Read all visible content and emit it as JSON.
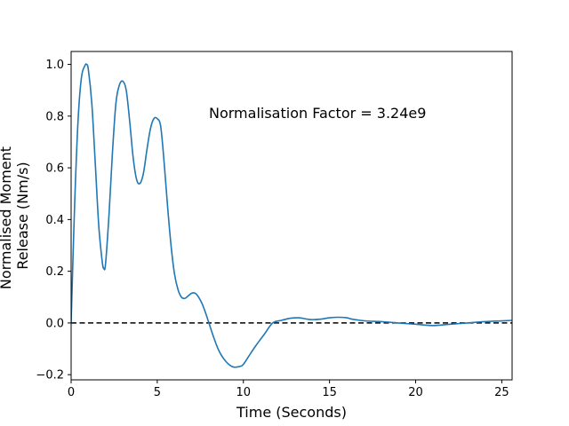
{
  "chart_data": {
    "type": "line",
    "title": "",
    "xlabel": "Time (Seconds)",
    "ylabel_lines": [
      "Normalised Moment",
      "Release (Nm/s)"
    ],
    "xlim": [
      0,
      25.6
    ],
    "ylim": [
      -0.22,
      1.05
    ],
    "x_ticks": [
      0,
      5,
      10,
      15,
      20,
      25
    ],
    "y_ticks": [
      -0.2,
      0.0,
      0.2,
      0.4,
      0.6,
      0.8,
      1.0
    ],
    "x_tick_labels": [
      "0",
      "5",
      "10",
      "15",
      "20",
      "25"
    ],
    "y_tick_labels": [
      "−0.2",
      "0.0",
      "0.2",
      "0.4",
      "0.6",
      "0.8",
      "1.0"
    ],
    "grid": false,
    "annotation": {
      "text": "Normalisation Factor = 3.24e9",
      "x": 8.0,
      "y": 0.81
    },
    "reference_line": {
      "y": 0.0,
      "style": "dashed",
      "color": "#000000"
    },
    "series": [
      {
        "color": "#1f77b4",
        "x": [
          0,
          0.2,
          0.4,
          0.6,
          0.8,
          0.9,
          1.0,
          1.2,
          1.4,
          1.6,
          1.8,
          1.9,
          2.0,
          2.2,
          2.4,
          2.6,
          2.8,
          3.0,
          3.2,
          3.4,
          3.6,
          3.8,
          4.0,
          4.2,
          4.4,
          4.6,
          4.8,
          5.0,
          5.2,
          5.4,
          5.6,
          5.8,
          6.0,
          6.2,
          6.4,
          6.6,
          6.8,
          7.0,
          7.2,
          7.4,
          7.6,
          7.8,
          8.0,
          8.3,
          8.6,
          9.0,
          9.4,
          9.8,
          10.0,
          10.3,
          10.7,
          11.2,
          11.7,
          12.2,
          12.7,
          13.2,
          13.7,
          14.0,
          14.5,
          15.0,
          15.5,
          16.0,
          16.3,
          16.8,
          17.3,
          18.0,
          19.0,
          20.0,
          21.0,
          22.0,
          23.0,
          24.0,
          25.0,
          25.6
        ],
        "y": [
          0.0,
          0.45,
          0.78,
          0.95,
          0.995,
          1.0,
          0.98,
          0.85,
          0.62,
          0.38,
          0.24,
          0.21,
          0.23,
          0.42,
          0.66,
          0.85,
          0.92,
          0.935,
          0.9,
          0.78,
          0.64,
          0.555,
          0.54,
          0.58,
          0.67,
          0.75,
          0.79,
          0.79,
          0.76,
          0.62,
          0.45,
          0.3,
          0.19,
          0.13,
          0.1,
          0.095,
          0.105,
          0.115,
          0.115,
          0.1,
          0.075,
          0.04,
          0.0,
          -0.06,
          -0.11,
          -0.15,
          -0.17,
          -0.168,
          -0.16,
          -0.13,
          -0.09,
          -0.045,
          0.0,
          0.01,
          0.018,
          0.02,
          0.015,
          0.013,
          0.015,
          0.02,
          0.022,
          0.02,
          0.015,
          0.01,
          0.007,
          0.005,
          0.0,
          -0.005,
          -0.01,
          -0.005,
          0.0,
          0.005,
          0.008,
          0.01
        ]
      }
    ]
  }
}
